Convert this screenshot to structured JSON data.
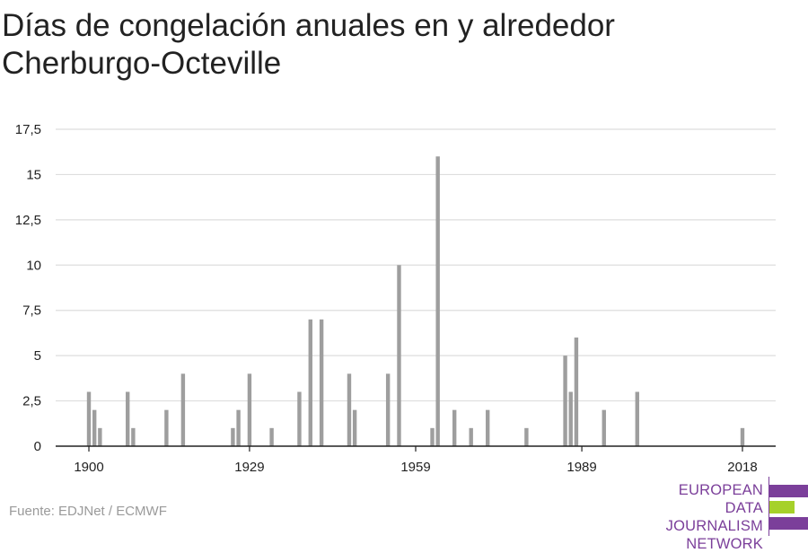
{
  "title_lines": [
    "Días de congelación anuales en y alrededor",
    "Cherburgo-Octeville"
  ],
  "source": "Fuente: EDJNet / ECMWF",
  "logo": {
    "lines": [
      "EUROPEAN",
      "DATA JOURNALISM",
      "NETWORK"
    ]
  },
  "colors": {
    "bar": "#9e9e9e",
    "grid": "#dddddd",
    "axis": "#222222",
    "brand_purple": "#7b3f9a",
    "brand_green": "#a6d12a"
  },
  "chart_data": {
    "type": "bar",
    "title": "Días de congelación anuales en y alrededor Cherburgo-Octeville",
    "xlim": [
      1894,
      2024
    ],
    "ylim": [
      0,
      17.5
    ],
    "y_ticks": [
      0,
      2.5,
      5,
      7.5,
      10,
      12.5,
      15,
      17.5
    ],
    "y_tick_labels": [
      "0",
      "2,5",
      "5",
      "7,5",
      "10",
      "12,5",
      "15",
      "17,5"
    ],
    "x_ticks": [
      1900,
      1929,
      1959,
      1989,
      2018
    ],
    "x_tick_labels": [
      "1900",
      "1929",
      "1959",
      "1989",
      "2018"
    ],
    "grid": true,
    "points": [
      {
        "x": 1900,
        "y": 3
      },
      {
        "x": 1901,
        "y": 2
      },
      {
        "x": 1902,
        "y": 1
      },
      {
        "x": 1907,
        "y": 3
      },
      {
        "x": 1908,
        "y": 1
      },
      {
        "x": 1914,
        "y": 2
      },
      {
        "x": 1917,
        "y": 4
      },
      {
        "x": 1926,
        "y": 1
      },
      {
        "x": 1927,
        "y": 2
      },
      {
        "x": 1929,
        "y": 4
      },
      {
        "x": 1933,
        "y": 1
      },
      {
        "x": 1938,
        "y": 3
      },
      {
        "x": 1940,
        "y": 7
      },
      {
        "x": 1942,
        "y": 7
      },
      {
        "x": 1947,
        "y": 4
      },
      {
        "x": 1948,
        "y": 2
      },
      {
        "x": 1954,
        "y": 4
      },
      {
        "x": 1956,
        "y": 10
      },
      {
        "x": 1962,
        "y": 1
      },
      {
        "x": 1963,
        "y": 16
      },
      {
        "x": 1966,
        "y": 2
      },
      {
        "x": 1969,
        "y": 1
      },
      {
        "x": 1972,
        "y": 2
      },
      {
        "x": 1979,
        "y": 1
      },
      {
        "x": 1986,
        "y": 5
      },
      {
        "x": 1987,
        "y": 3
      },
      {
        "x": 1988,
        "y": 6
      },
      {
        "x": 1993,
        "y": 2
      },
      {
        "x": 1999,
        "y": 3
      },
      {
        "x": 2018,
        "y": 1
      }
    ]
  }
}
